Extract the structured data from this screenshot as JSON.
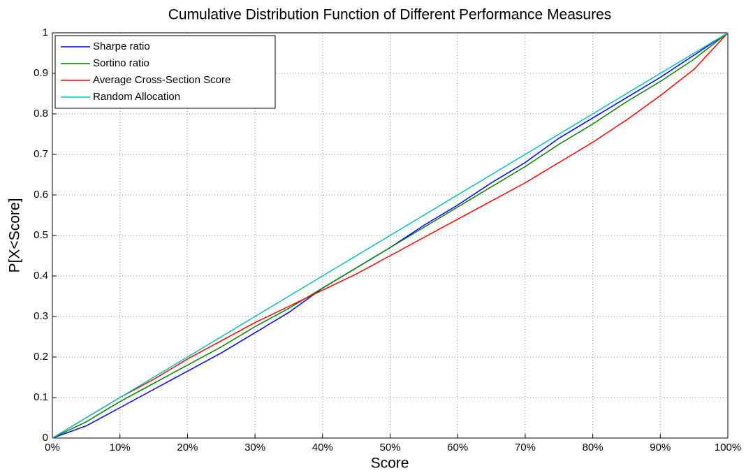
{
  "chart_data": {
    "type": "line",
    "title": "Cumulative Distribution Function of Different Performance Measures",
    "x_label": "Score",
    "y_label": "P[X<Score]",
    "x": [
      0,
      5,
      10,
      15,
      20,
      25,
      30,
      35,
      40,
      45,
      50,
      55,
      60,
      65,
      70,
      75,
      80,
      85,
      90,
      95,
      100
    ],
    "series": [
      {
        "name": "Sharpe ratio",
        "color": "#0000ff",
        "values": [
          0,
          0.03,
          0.075,
          0.12,
          0.165,
          0.21,
          0.26,
          0.31,
          0.37,
          0.42,
          0.47,
          0.525,
          0.575,
          0.63,
          0.68,
          0.74,
          0.79,
          0.84,
          0.89,
          0.945,
          1
        ]
      },
      {
        "name": "Sortino ratio",
        "color": "#008000",
        "values": [
          0,
          0.04,
          0.09,
          0.135,
          0.18,
          0.225,
          0.275,
          0.32,
          0.37,
          0.42,
          0.47,
          0.52,
          0.57,
          0.62,
          0.67,
          0.725,
          0.775,
          0.83,
          0.88,
          0.935,
          1
        ]
      },
      {
        "name": "Average Cross-Section Score",
        "color": "#ff0000",
        "values": [
          0,
          0.05,
          0.1,
          0.145,
          0.195,
          0.24,
          0.285,
          0.325,
          0.365,
          0.405,
          0.45,
          0.495,
          0.54,
          0.585,
          0.63,
          0.68,
          0.73,
          0.785,
          0.845,
          0.91,
          1
        ]
      },
      {
        "name": "Random Allocation",
        "color": "#00bfbf",
        "values": [
          0,
          0.05,
          0.1,
          0.15,
          0.2,
          0.25,
          0.3,
          0.35,
          0.4,
          0.45,
          0.5,
          0.55,
          0.6,
          0.65,
          0.7,
          0.75,
          0.8,
          0.85,
          0.9,
          0.95,
          1
        ]
      }
    ],
    "xlim": [
      0,
      100
    ],
    "xticks": [
      {
        "value": 0,
        "label": "0%"
      },
      {
        "value": 10,
        "label": "10%"
      },
      {
        "value": 20,
        "label": "20%"
      },
      {
        "value": 30,
        "label": "30%"
      },
      {
        "value": 40,
        "label": "40%"
      },
      {
        "value": 50,
        "label": "50%"
      },
      {
        "value": 60,
        "label": "60%"
      },
      {
        "value": 70,
        "label": "70%"
      },
      {
        "value": 80,
        "label": "80%"
      },
      {
        "value": 90,
        "label": "90%"
      },
      {
        "value": 100,
        "label": "100%"
      }
    ],
    "ylim": [
      0,
      1
    ],
    "yticks": [
      0,
      0.1,
      0.2,
      0.3,
      0.4,
      0.5,
      0.6,
      0.7,
      0.8,
      0.9,
      1
    ],
    "grid": true,
    "legend": "top-left"
  }
}
